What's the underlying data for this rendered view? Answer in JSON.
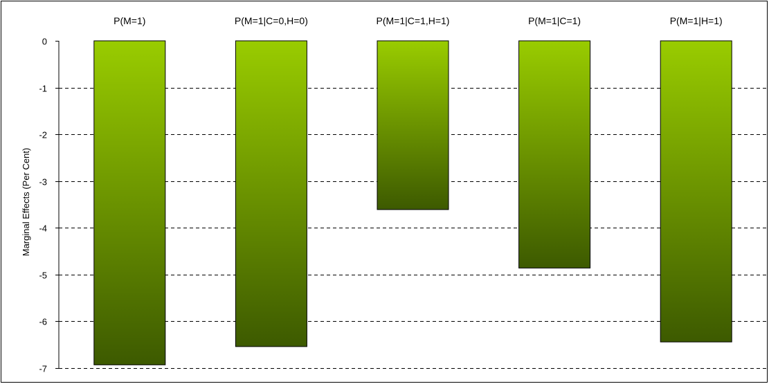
{
  "chart_data": {
    "type": "bar",
    "categories": [
      "P(M=1)",
      "P(M=1|C=0,H=0)",
      "P(M=1|C=1,H=1)",
      "P(M=1|C=1)",
      "P(M=1|H=1)"
    ],
    "values": [
      -6.93,
      -6.54,
      -3.61,
      -4.86,
      -6.44
    ],
    "title": "",
    "xlabel": "",
    "ylabel": "Marginal Effects (Per Cent)",
    "ylim": [
      -7,
      0
    ],
    "yticks": [
      "0",
      "-1",
      "-2",
      "-3",
      "-4",
      "-5",
      "-6",
      "-7"
    ],
    "grid": "horizontal dashed",
    "category_labels_position": "top",
    "colors": {
      "bar_top": "#99cc00",
      "bar_bottom": "#3d5a00",
      "bar_outline": "#000000",
      "grid": "#000000"
    }
  }
}
